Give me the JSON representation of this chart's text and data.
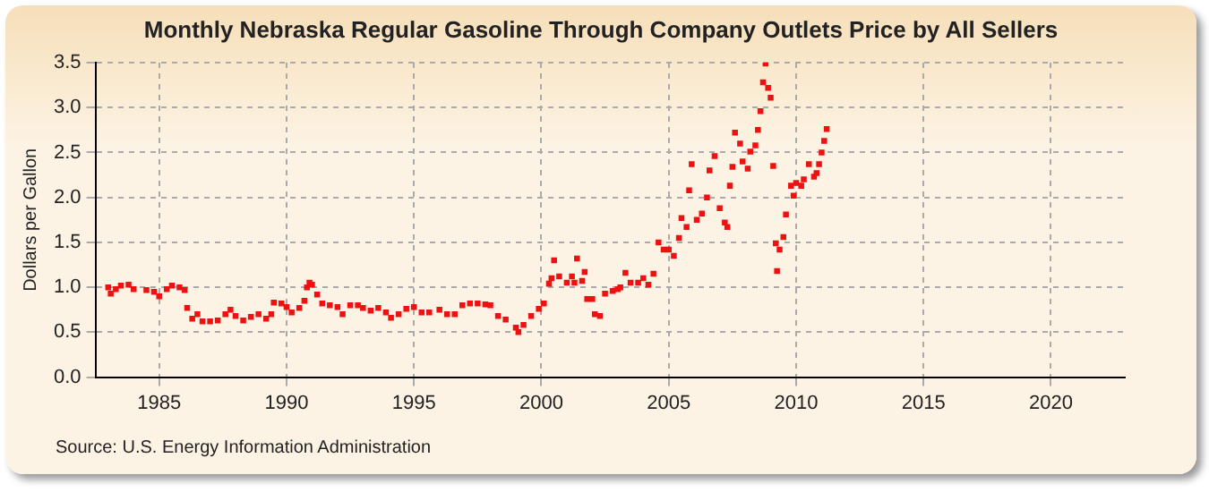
{
  "chart_data": {
    "type": "scatter",
    "title": "Monthly Nebraska Regular Gasoline Through Company Outlets Price by All Sellers",
    "ylabel": "Dollars per Gallon",
    "annotations": [
      "Source: U.S. Energy Information Administration"
    ],
    "x": [
      1983.0,
      1983.1,
      1983.3,
      1983.5,
      1983.8,
      1984.0,
      1984.5,
      1984.8,
      1985.0,
      1985.3,
      1985.5,
      1985.8,
      1986.0,
      1986.1,
      1986.3,
      1986.5,
      1986.7,
      1987.0,
      1987.3,
      1987.6,
      1987.8,
      1988.0,
      1988.3,
      1988.6,
      1988.9,
      1989.2,
      1989.4,
      1989.5,
      1989.8,
      1990.0,
      1990.2,
      1990.5,
      1990.7,
      1990.8,
      1990.9,
      1991.0,
      1991.2,
      1991.4,
      1991.7,
      1992.0,
      1992.2,
      1992.5,
      1992.8,
      1993.0,
      1993.3,
      1993.6,
      1993.9,
      1994.1,
      1994.4,
      1994.7,
      1995.0,
      1995.3,
      1995.6,
      1996.0,
      1996.3,
      1996.6,
      1996.9,
      1997.2,
      1997.5,
      1997.8,
      1998.0,
      1998.3,
      1998.6,
      1999.0,
      1999.1,
      1999.3,
      1999.6,
      1999.9,
      2000.1,
      2000.3,
      2000.4,
      2000.5,
      2000.7,
      2001.0,
      2001.2,
      2001.3,
      2001.4,
      2001.6,
      2001.7,
      2001.8,
      2002.0,
      2002.1,
      2002.3,
      2002.5,
      2002.8,
      2003.0,
      2003.1,
      2003.3,
      2003.5,
      2003.8,
      2004.0,
      2004.2,
      2004.4,
      2004.6,
      2004.8,
      2005.0,
      2005.2,
      2005.4,
      2005.5,
      2005.7,
      2005.8,
      2005.9,
      2006.1,
      2006.3,
      2006.5,
      2006.6,
      2006.8,
      2007.0,
      2007.2,
      2007.3,
      2007.4,
      2007.5,
      2007.6,
      2007.8,
      2007.9,
      2008.1,
      2008.2,
      2008.4,
      2008.5,
      2008.6,
      2008.7,
      2008.8,
      2008.9,
      2009.0,
      2009.1,
      2009.2,
      2009.25,
      2009.35,
      2009.5,
      2009.6,
      2009.8,
      2009.9,
      2010.0,
      2010.2,
      2010.3,
      2010.5,
      2010.7,
      2010.8,
      2010.9,
      2011.0,
      2011.1,
      2011.2
    ],
    "series": [
      {
        "color": "#ee1111",
        "values": [
          1.0,
          0.93,
          0.98,
          1.02,
          1.03,
          0.98,
          0.97,
          0.95,
          0.9,
          0.98,
          1.02,
          1.0,
          0.97,
          0.77,
          0.65,
          0.7,
          0.62,
          0.62,
          0.63,
          0.7,
          0.75,
          0.68,
          0.63,
          0.67,
          0.7,
          0.65,
          0.7,
          0.83,
          0.82,
          0.78,
          0.72,
          0.77,
          0.85,
          1.0,
          1.05,
          1.03,
          0.92,
          0.82,
          0.8,
          0.78,
          0.7,
          0.8,
          0.8,
          0.77,
          0.74,
          0.77,
          0.72,
          0.66,
          0.7,
          0.76,
          0.78,
          0.72,
          0.72,
          0.75,
          0.7,
          0.7,
          0.8,
          0.82,
          0.82,
          0.81,
          0.8,
          0.68,
          0.64,
          0.55,
          0.5,
          0.58,
          0.68,
          0.76,
          0.82,
          1.04,
          1.1,
          1.3,
          1.12,
          1.05,
          1.12,
          1.05,
          1.32,
          1.07,
          1.17,
          0.87,
          0.87,
          0.7,
          0.68,
          0.93,
          0.96,
          0.98,
          1.0,
          1.16,
          1.05,
          1.05,
          1.1,
          1.03,
          1.15,
          1.5,
          1.42,
          1.42,
          1.35,
          1.55,
          1.77,
          1.67,
          2.08,
          2.37,
          1.75,
          1.82,
          2.0,
          2.3,
          2.46,
          1.88,
          1.72,
          1.67,
          2.13,
          2.34,
          2.72,
          2.6,
          2.4,
          2.32,
          2.51,
          2.58,
          2.75,
          2.96,
          3.28,
          3.49,
          3.22,
          3.11,
          2.35,
          1.49,
          1.18,
          1.42,
          1.56,
          1.81,
          2.13,
          2.02,
          2.16,
          2.13,
          2.2,
          2.37,
          2.23,
          2.27,
          2.37,
          2.5,
          2.63,
          2.76
        ]
      }
    ],
    "xlim": [
      1982.5,
      2022.9
    ],
    "xticks": [
      1985,
      1990,
      1995,
      2000,
      2005,
      2010,
      2015,
      2020
    ],
    "ylim": [
      0,
      3.5
    ],
    "yticks": [
      {
        "value": 0,
        "label": "0.0"
      },
      {
        "value": 0.5,
        "label": "0.5"
      },
      {
        "value": 1,
        "label": "1.0"
      },
      {
        "value": 1.5,
        "label": "1.5"
      },
      {
        "value": 2,
        "label": "2.0"
      },
      {
        "value": 2.5,
        "label": "2.5"
      },
      {
        "value": 3,
        "label": "3.0"
      },
      {
        "value": 3.5,
        "label": "3.5"
      }
    ],
    "grid": true,
    "legend": false,
    "marker": "square"
  }
}
